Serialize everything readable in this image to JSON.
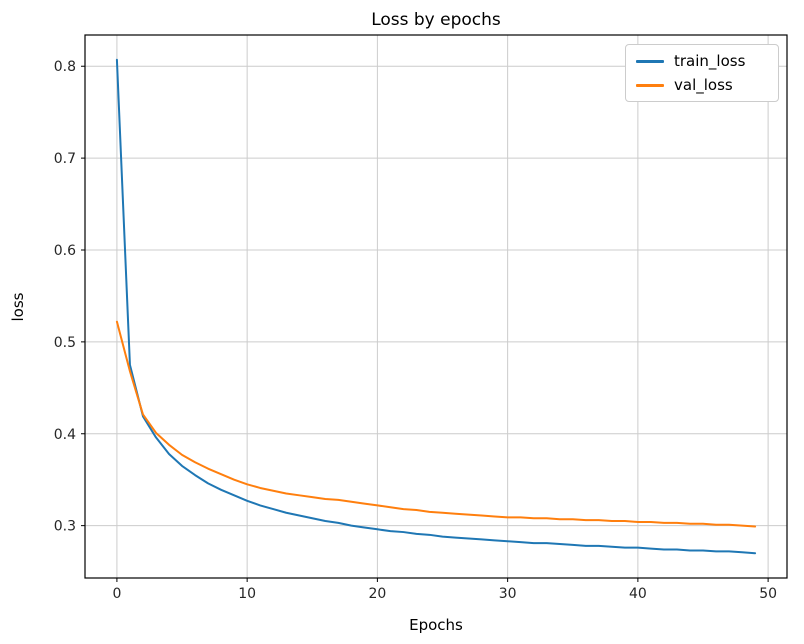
{
  "figure": {
    "background": "#ffffff"
  },
  "chart_data": {
    "type": "line",
    "title": "Loss by epochs",
    "xlabel": "Epochs",
    "ylabel": "loss",
    "x": [
      0,
      1,
      2,
      3,
      4,
      5,
      6,
      7,
      8,
      9,
      10,
      11,
      12,
      13,
      14,
      15,
      16,
      17,
      18,
      19,
      20,
      21,
      22,
      23,
      24,
      25,
      26,
      27,
      28,
      29,
      30,
      31,
      32,
      33,
      34,
      35,
      36,
      37,
      38,
      39,
      40,
      41,
      42,
      43,
      44,
      45,
      46,
      47,
      48,
      49
    ],
    "series": [
      {
        "name": "train_loss",
        "color": "#1f77b4",
        "values": [
          0.807,
          0.475,
          0.419,
          0.396,
          0.378,
          0.365,
          0.355,
          0.346,
          0.339,
          0.333,
          0.327,
          0.322,
          0.318,
          0.314,
          0.311,
          0.308,
          0.305,
          0.303,
          0.3,
          0.298,
          0.296,
          0.294,
          0.293,
          0.291,
          0.29,
          0.288,
          0.287,
          0.286,
          0.285,
          0.284,
          0.283,
          0.282,
          0.281,
          0.281,
          0.28,
          0.279,
          0.278,
          0.278,
          0.277,
          0.276,
          0.276,
          0.275,
          0.274,
          0.274,
          0.273,
          0.273,
          0.272,
          0.272,
          0.271,
          0.27
        ]
      },
      {
        "name": "val_loss",
        "color": "#ff7f0e",
        "values": [
          0.522,
          0.468,
          0.421,
          0.401,
          0.388,
          0.377,
          0.369,
          0.362,
          0.356,
          0.35,
          0.345,
          0.341,
          0.338,
          0.335,
          0.333,
          0.331,
          0.329,
          0.328,
          0.326,
          0.324,
          0.322,
          0.32,
          0.318,
          0.317,
          0.315,
          0.314,
          0.313,
          0.312,
          0.311,
          0.31,
          0.309,
          0.309,
          0.308,
          0.308,
          0.307,
          0.307,
          0.306,
          0.306,
          0.305,
          0.305,
          0.304,
          0.304,
          0.303,
          0.303,
          0.302,
          0.302,
          0.301,
          0.301,
          0.3,
          0.299
        ]
      }
    ],
    "xlim": [
      -2.45,
      51.45
    ],
    "ylim": [
      0.243,
      0.834
    ],
    "xticks": [
      0,
      10,
      20,
      30,
      40,
      50
    ],
    "yticks": [
      0.3,
      0.4,
      0.5,
      0.6,
      0.7,
      0.8
    ],
    "grid": true,
    "grid_color": "#cccccc",
    "axis_color": "#000000",
    "tick_label_color": "#262626",
    "legend_position": "upper right",
    "line_width": 2
  }
}
